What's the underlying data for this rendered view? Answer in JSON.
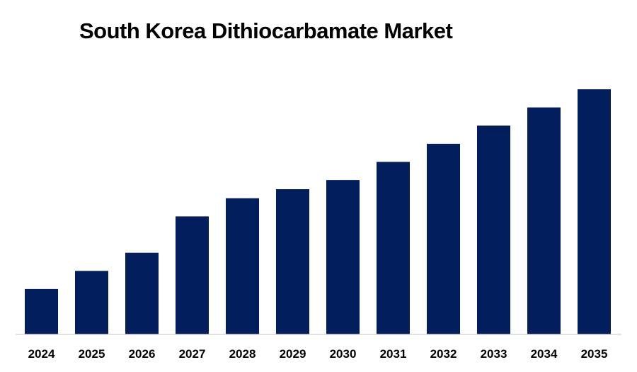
{
  "chart_data": {
    "type": "bar",
    "title": "South Korea Dithiocarbamate Market",
    "categories": [
      "2024",
      "2025",
      "2026",
      "2027",
      "2028",
      "2029",
      "2030",
      "2031",
      "2032",
      "2033",
      "2034",
      "2035"
    ],
    "values": [
      1.0,
      1.4,
      1.8,
      2.6,
      3.0,
      3.2,
      3.4,
      3.8,
      4.2,
      4.6,
      5.0,
      5.4
    ],
    "xlabel": "",
    "ylabel": "",
    "ylim": [
      0,
      5.4
    ],
    "grid": false,
    "legend": "none",
    "bar_color": "#021E5C",
    "axis_color": "#D9D9D9"
  }
}
